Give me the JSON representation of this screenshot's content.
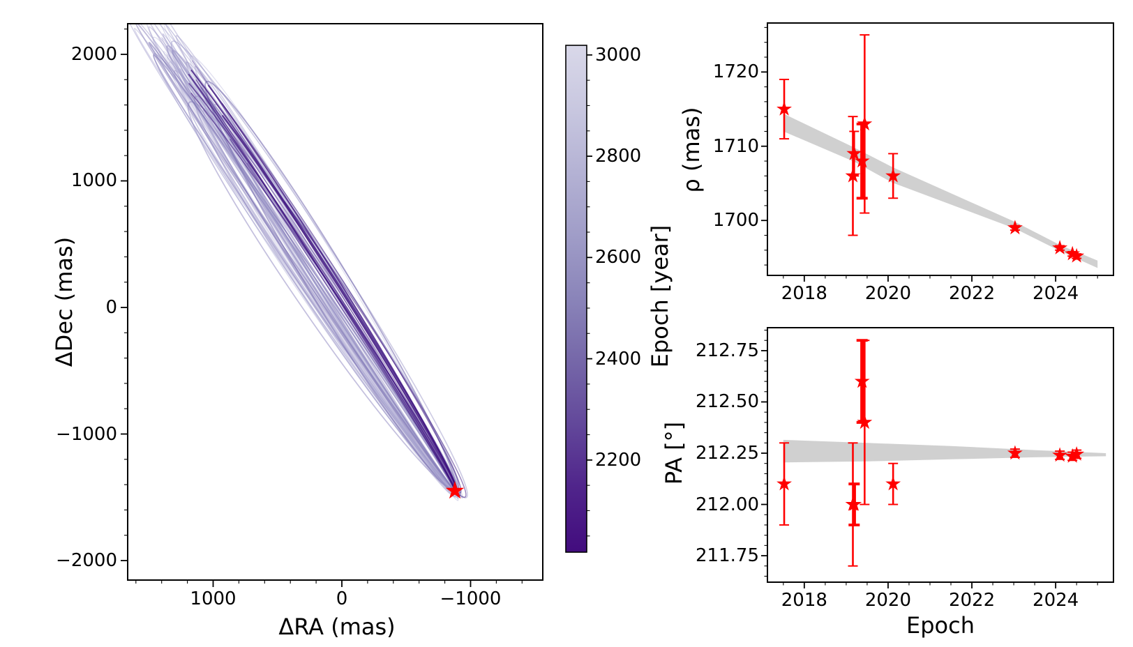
{
  "figure": {
    "bg": "#ffffff"
  },
  "colors": {
    "red": "#ff0000",
    "band_gray": "#cdcdcd",
    "dark_purple": "#3a0c7c",
    "light_purple_rgb": [
      177,
      174,
      214
    ],
    "mid_purple_rgb": [
      118,
      108,
      175
    ],
    "spine": "#000000"
  },
  "chart_data": [
    {
      "id": "orbit",
      "type": "line",
      "xlabel": "ΔRA (mas)",
      "ylabel": "ΔDec (mas)",
      "xlim": [
        1664,
        -1561
      ],
      "ylim_top": 2242,
      "ylim_bottom": -2154,
      "xticks": [
        {
          "v": 1000,
          "label": "1000"
        },
        {
          "v": 0,
          "label": "0"
        },
        {
          "v": -1000,
          "label": "−1000"
        }
      ],
      "yticks": [
        {
          "v": 2000,
          "label": "2000"
        },
        {
          "v": 1000,
          "label": "1000"
        },
        {
          "v": 0,
          "label": "0"
        },
        {
          "v": -1000,
          "label": "−1000"
        },
        {
          "v": -2000,
          "label": "−2000"
        }
      ],
      "minor_step": 200,
      "star": {
        "ra": -878,
        "dec": -1449
      },
      "cloud": {
        "seed": 11,
        "count": 40,
        "angle_deg_min": 55.2,
        "angle_deg_span": 3.6,
        "a_min": 330,
        "a_span": 95,
        "b_min": 6,
        "b_span": 28,
        "t0_min": -0.28,
        "t0_span": 0.6,
        "dark_arcs": 13
      }
    },
    {
      "id": "rho",
      "type": "scatter",
      "ylabel": "ρ (mas)",
      "xlim": [
        2017.12,
        2025.38
      ],
      "ylim_top": 1726.6,
      "ylim_bottom": 1692.6,
      "xticks": [
        {
          "v": 2018,
          "label": "2018"
        },
        {
          "v": 2020,
          "label": "2020"
        },
        {
          "v": 2022,
          "label": "2022"
        },
        {
          "v": 2024,
          "label": "2024"
        }
      ],
      "yticks": [
        {
          "v": 1720,
          "label": "1720"
        },
        {
          "v": 1710,
          "label": "1710"
        },
        {
          "v": 1700,
          "label": "1700"
        }
      ],
      "x_minor_step": 0.5,
      "y_minor_step": 2,
      "y_major_step": 10,
      "points": [
        {
          "epoch": 2017.52,
          "value": 1715.0,
          "err": 4.0,
          "bold": false
        },
        {
          "epoch": 2019.16,
          "value": 1706.0,
          "err": 8.0,
          "bold": false
        },
        {
          "epoch": 2019.19,
          "value": 1709.0,
          "err": 3.0,
          "bold": false
        },
        {
          "epoch": 2019.38,
          "value": 1708.0,
          "err": 5.0,
          "bold": true
        },
        {
          "epoch": 2019.44,
          "value": 1713.0,
          "err": 12.0,
          "bold": false
        },
        {
          "epoch": 2020.12,
          "value": 1706.0,
          "err": 3.0,
          "bold": false
        },
        {
          "epoch": 2023.03,
          "value": 1699.0,
          "err": 0.3,
          "bold": false
        },
        {
          "epoch": 2024.1,
          "value": 1696.3,
          "err": 0.3,
          "bold": false
        },
        {
          "epoch": 2024.4,
          "value": 1695.5,
          "err": 0.3,
          "bold": false
        },
        {
          "epoch": 2024.5,
          "value": 1695.2,
          "err": 0.3,
          "bold": false
        }
      ],
      "band": {
        "epochs": [
          2017.5,
          2019.2,
          2020.1,
          2023.03,
          2024.1,
          2025.0
        ],
        "hi": [
          1714.4,
          1709.8,
          1707.2,
          1699.8,
          1696.7,
          1694.6
        ],
        "lo": [
          1712.0,
          1707.9,
          1705.1,
          1698.9,
          1695.9,
          1693.6
        ]
      }
    },
    {
      "id": "pa",
      "type": "scatter",
      "ylabel": "PA [°]",
      "xlabel": "Epoch",
      "xlim": [
        2017.12,
        2025.38
      ],
      "ylim_top": 212.862,
      "ylim_bottom": 211.621,
      "xticks": [
        {
          "v": 2018,
          "label": "2018"
        },
        {
          "v": 2020,
          "label": "2020"
        },
        {
          "v": 2022,
          "label": "2022"
        },
        {
          "v": 2024,
          "label": "2024"
        }
      ],
      "yticks": [
        {
          "v": 212.75,
          "label": "212.75"
        },
        {
          "v": 212.5,
          "label": "212.50"
        },
        {
          "v": 212.25,
          "label": "212.25"
        },
        {
          "v": 212.0,
          "label": "212.00"
        },
        {
          "v": 211.75,
          "label": "211.75"
        }
      ],
      "x_minor_step": 0.5,
      "y_minor_step": 0.05,
      "y_major_step": 0.25,
      "points": [
        {
          "epoch": 2017.52,
          "value": 212.1,
          "err": 0.2,
          "bold": false
        },
        {
          "epoch": 2019.16,
          "value": 212.0,
          "err": 0.3,
          "bold": false
        },
        {
          "epoch": 2019.19,
          "value": 212.0,
          "err": 0.1,
          "bold": true
        },
        {
          "epoch": 2019.38,
          "value": 212.6,
          "err": 0.2,
          "bold": true
        },
        {
          "epoch": 2019.44,
          "value": 212.4,
          "err": 0.4,
          "bold": false
        },
        {
          "epoch": 2020.12,
          "value": 212.1,
          "err": 0.1,
          "bold": false
        },
        {
          "epoch": 2023.03,
          "value": 212.25,
          "err": 0.02,
          "bold": false
        },
        {
          "epoch": 2024.1,
          "value": 212.24,
          "err": 0.02,
          "bold": false
        },
        {
          "epoch": 2024.4,
          "value": 212.235,
          "err": 0.02,
          "bold": false
        },
        {
          "epoch": 2024.5,
          "value": 212.245,
          "err": 0.02,
          "bold": false
        }
      ],
      "band": {
        "epochs": [
          2017.5,
          2019.5,
          2021.5,
          2023.5,
          2025.2
        ],
        "hi": [
          212.315,
          212.3,
          212.285,
          212.265,
          212.25
        ],
        "lo": [
          212.205,
          212.21,
          212.22,
          212.23,
          212.235
        ]
      }
    }
  ],
  "colorbar": {
    "label": "Epoch [year]",
    "vmin": 2018,
    "vmax": 3019,
    "ticks": [
      {
        "v": 3000,
        "label": "3000"
      },
      {
        "v": 2800,
        "label": "2800"
      },
      {
        "v": 2600,
        "label": "2600"
      },
      {
        "v": 2400,
        "label": "2400"
      },
      {
        "v": 2200,
        "label": "2200"
      }
    ],
    "minor_step": 50,
    "gradient": [
      [
        "0%",
        "#d9d8e9"
      ],
      [
        "12%",
        "#c9c8e0"
      ],
      [
        "25%",
        "#b4b2d4"
      ],
      [
        "38%",
        "#9f9cc7"
      ],
      [
        "50%",
        "#8a84b9"
      ],
      [
        "62%",
        "#7668a9"
      ],
      [
        "75%",
        "#62479a"
      ],
      [
        "87%",
        "#50258b"
      ],
      [
        "100%",
        "#420c7e"
      ]
    ]
  }
}
